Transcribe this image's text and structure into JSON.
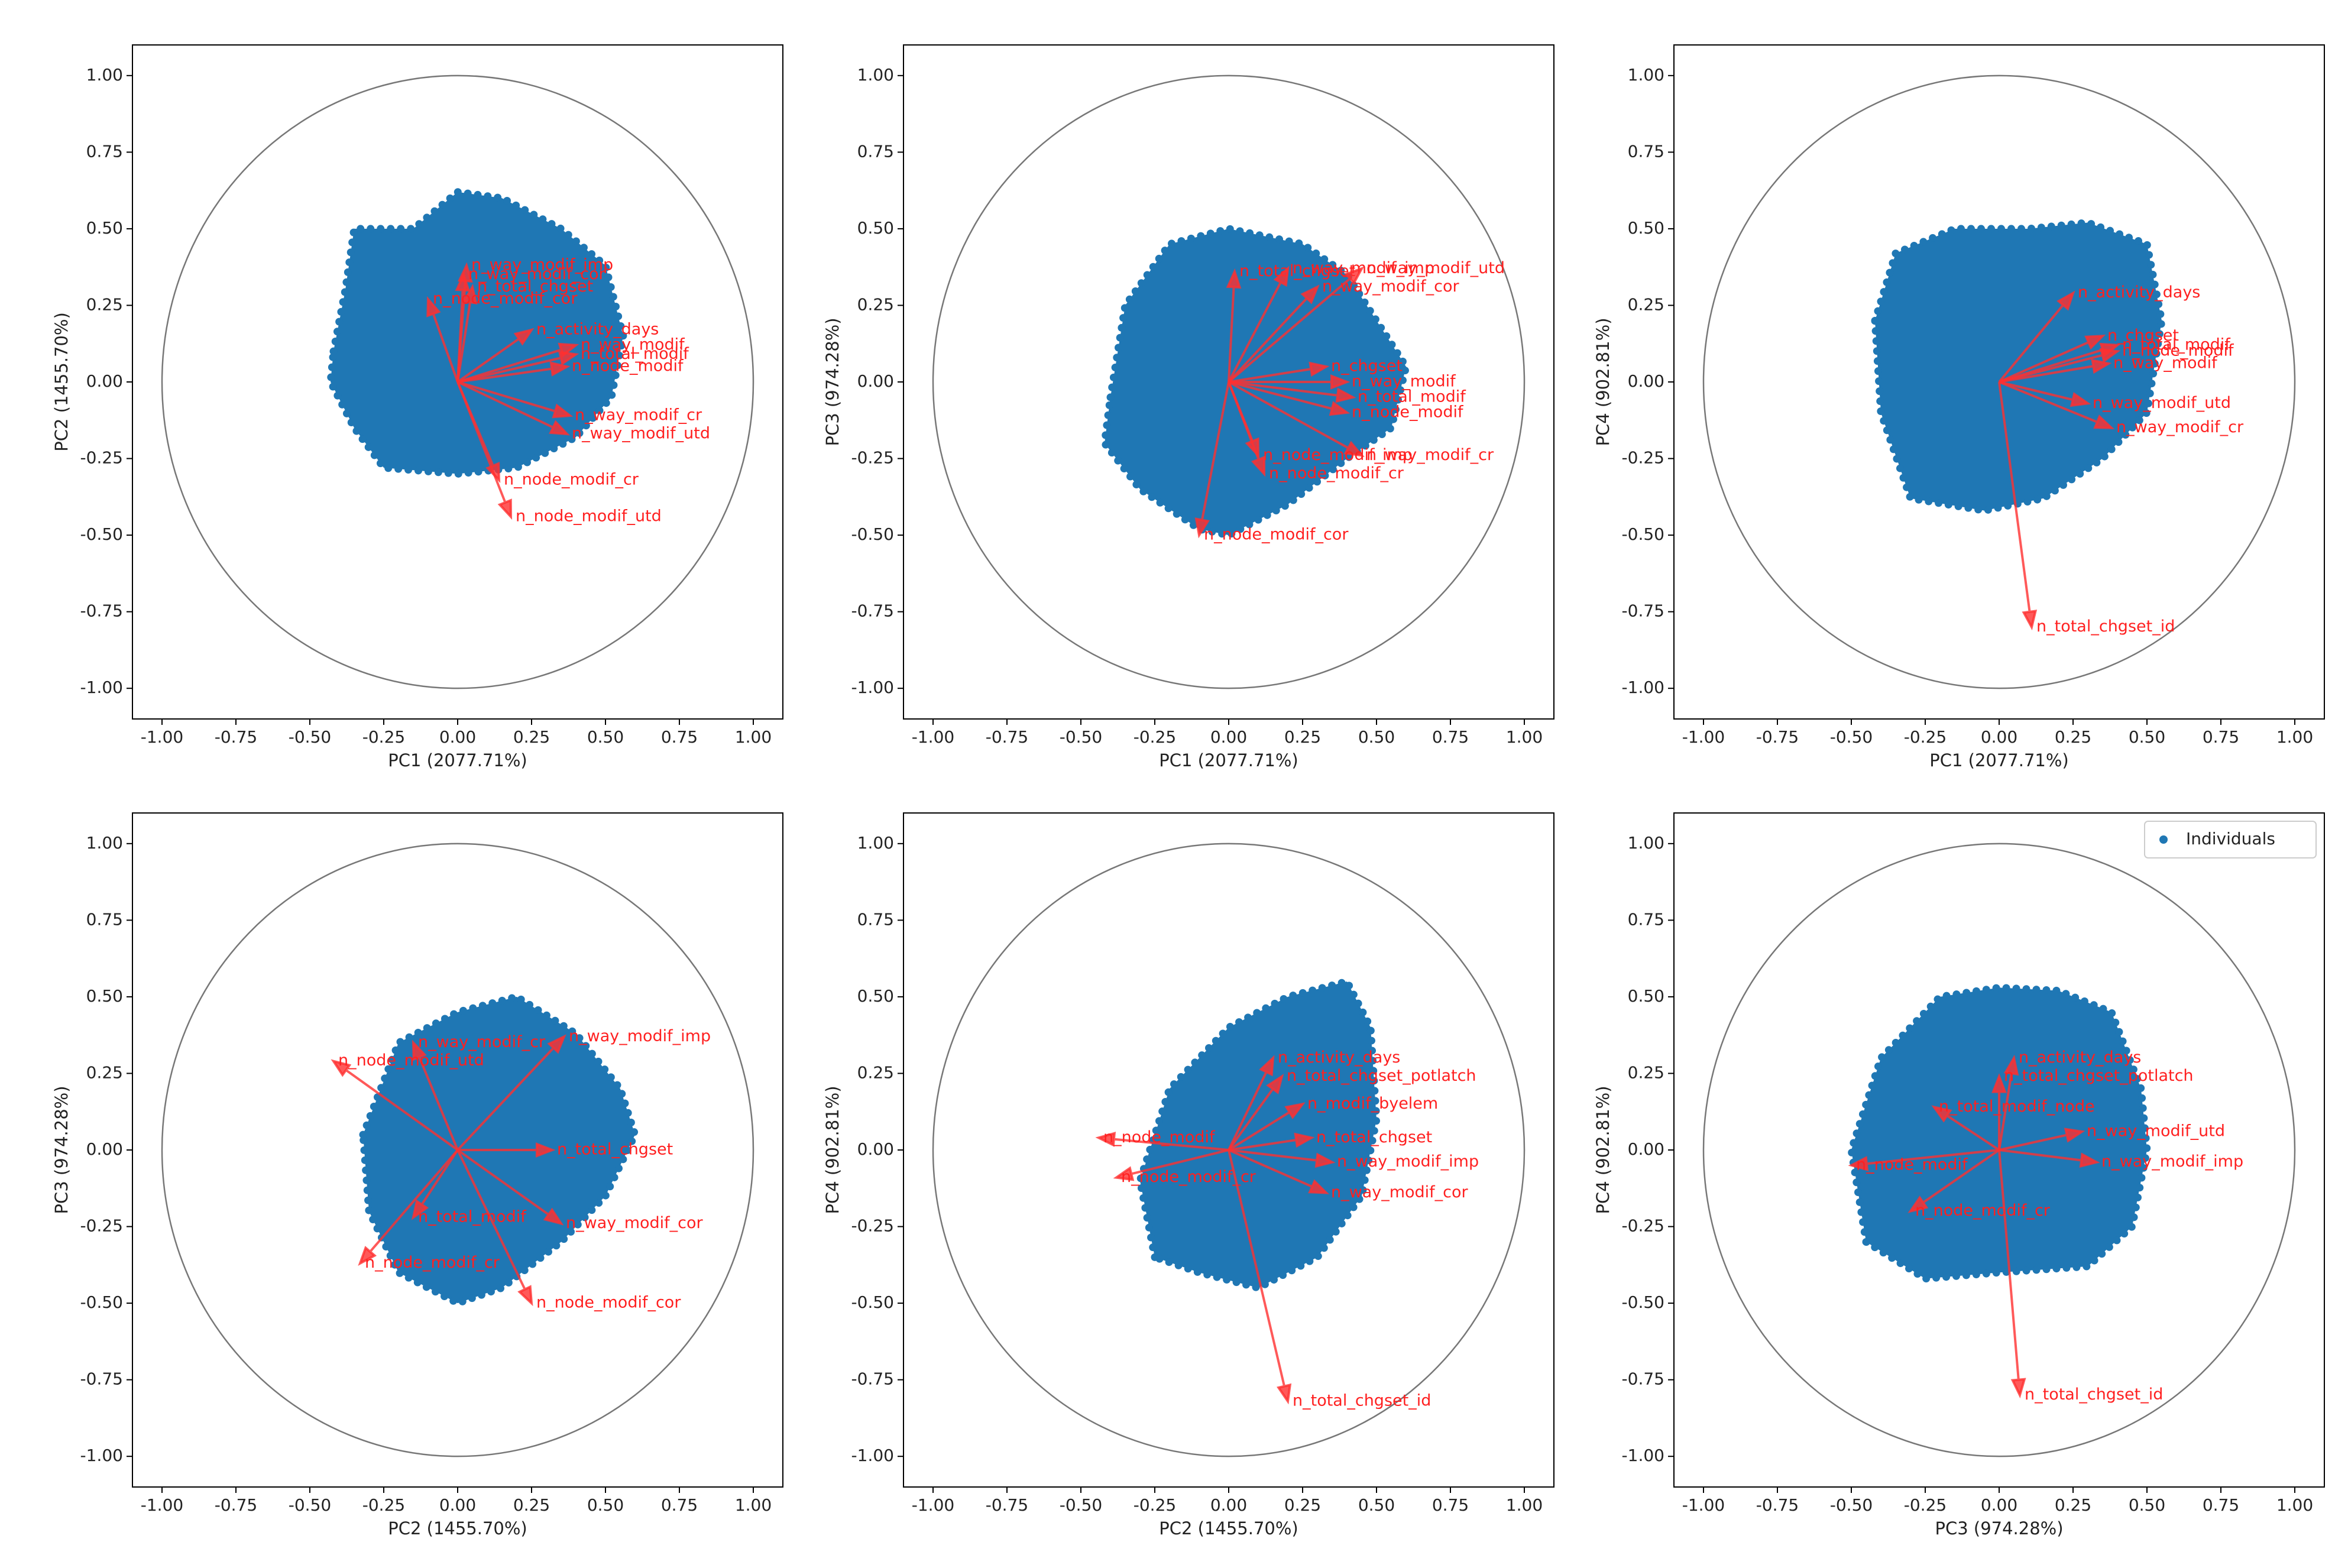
{
  "chart_data": [
    {
      "type": "biplot",
      "xlabel": "PC1 (2077.71%)",
      "ylabel": "PC2 (1455.70%)",
      "xlim": [
        -1.1,
        1.1
      ],
      "ylim": [
        -1.1,
        1.1
      ],
      "xticks": [
        {
          "value": -1,
          "label": "-1.00"
        },
        {
          "value": -0.75,
          "label": "-0.75"
        },
        {
          "value": -0.5,
          "label": "-0.50"
        },
        {
          "value": -0.25,
          "label": "-0.25"
        },
        {
          "value": 0,
          "label": "0.00"
        },
        {
          "value": 0.25,
          "label": "0.25"
        },
        {
          "value": 0.5,
          "label": "0.50"
        },
        {
          "value": 0.75,
          "label": "0.75"
        },
        {
          "value": 1,
          "label": "1.00"
        }
      ],
      "yticks": [
        {
          "value": -1,
          "label": "-1.00"
        },
        {
          "value": -0.75,
          "label": "-0.75"
        },
        {
          "value": -0.5,
          "label": "-0.50"
        },
        {
          "value": -0.25,
          "label": "-0.25"
        },
        {
          "value": 0,
          "label": "0.00"
        },
        {
          "value": 0.25,
          "label": "0.25"
        },
        {
          "value": 0.5,
          "label": "0.50"
        },
        {
          "value": 0.75,
          "label": "0.75"
        },
        {
          "value": 1,
          "label": "1.00"
        }
      ],
      "cloud": {
        "color": "#1f77b4",
        "x": [
          -0.42,
          -0.38,
          -0.35,
          -0.15,
          0.0,
          0.15,
          0.35,
          0.5,
          0.56,
          0.52,
          0.4,
          0.2,
          0.0,
          -0.25,
          -0.35,
          -0.43
        ],
        "y": [
          0.1,
          0.3,
          0.5,
          0.5,
          0.62,
          0.6,
          0.5,
          0.38,
          0.15,
          -0.05,
          -0.18,
          -0.28,
          -0.3,
          -0.28,
          -0.15,
          0.0
        ]
      },
      "loadings": {
        "color": "#ff3030",
        "labels": [
          "n_way_modif_imp",
          "n_way_modif_cor",
          "n_total_chgset",
          "n_node_modif_cor",
          "n_activity_days",
          "n_way_modif",
          "n_total_modif",
          "n_node_modif",
          "n_way_modif_cr",
          "n_way_modif_utd",
          "n_node_modif_cr",
          "n_node_modif_utd"
        ],
        "x": [
          0.03,
          0.02,
          0.05,
          -0.1,
          0.25,
          0.4,
          0.4,
          0.37,
          0.38,
          0.37,
          0.14,
          0.18
        ],
        "y": [
          0.38,
          0.35,
          0.31,
          0.27,
          0.17,
          0.12,
          0.09,
          0.05,
          -0.11,
          -0.17,
          -0.32,
          -0.44
        ]
      }
    },
    {
      "type": "biplot",
      "xlabel": "PC1 (2077.71%)",
      "ylabel": "PC3 (974.28%)",
      "xlim": [
        -1.1,
        1.1
      ],
      "ylim": [
        -1.1,
        1.1
      ],
      "xticks": [
        {
          "value": -1,
          "label": "-1.00"
        },
        {
          "value": -0.75,
          "label": "-0.75"
        },
        {
          "value": -0.5,
          "label": "-0.50"
        },
        {
          "value": -0.25,
          "label": "-0.25"
        },
        {
          "value": 0,
          "label": "0.00"
        },
        {
          "value": 0.25,
          "label": "0.25"
        },
        {
          "value": 0.5,
          "label": "0.50"
        },
        {
          "value": 0.75,
          "label": "0.75"
        },
        {
          "value": 1,
          "label": "1.00"
        }
      ],
      "yticks": [
        {
          "value": -1,
          "label": "-1.00"
        },
        {
          "value": -0.75,
          "label": "-0.75"
        },
        {
          "value": -0.5,
          "label": "-0.50"
        },
        {
          "value": -0.25,
          "label": "-0.25"
        },
        {
          "value": 0,
          "label": "0.00"
        },
        {
          "value": 0.25,
          "label": "0.25"
        },
        {
          "value": 0.5,
          "label": "0.50"
        },
        {
          "value": 0.75,
          "label": "0.75"
        },
        {
          "value": 1,
          "label": "1.00"
        }
      ],
      "cloud": {
        "color": "#1f77b4",
        "x": [
          -0.4,
          -0.35,
          -0.2,
          0.0,
          0.25,
          0.4,
          0.5,
          0.6,
          0.55,
          0.4,
          0.2,
          0.0,
          -0.1,
          -0.3,
          -0.42
        ],
        "y": [
          -0.05,
          0.25,
          0.45,
          0.5,
          0.45,
          0.35,
          0.2,
          0.05,
          -0.15,
          -0.25,
          -0.4,
          -0.5,
          -0.48,
          -0.35,
          -0.2
        ]
      },
      "loadings": {
        "color": "#ff3030",
        "labels": [
          "n_total_chgset",
          "n_way_modif_imp",
          "n_way_modif_utd",
          "n_way_modif_cor",
          "n_chgset",
          "n_way_modif",
          "n_total_modif",
          "n_node_modif",
          "n_way_modif_cr",
          "n_node_modif_imp",
          "n_node_modif_cr",
          "n_node_modif_cor"
        ],
        "x": [
          0.02,
          0.2,
          0.45,
          0.3,
          0.33,
          0.4,
          0.42,
          0.4,
          0.45,
          0.1,
          0.12,
          -0.1
        ],
        "y": [
          0.36,
          0.37,
          0.37,
          0.31,
          0.05,
          0.0,
          -0.05,
          -0.1,
          -0.24,
          -0.24,
          -0.3,
          -0.5
        ]
      }
    },
    {
      "type": "biplot",
      "xlabel": "PC1 (2077.71%)",
      "ylabel": "PC4 (902.81%)",
      "xlim": [
        -1.1,
        1.1
      ],
      "ylim": [
        -1.1,
        1.1
      ],
      "xticks": [
        {
          "value": -1,
          "label": "-1.00"
        },
        {
          "value": -0.75,
          "label": "-0.75"
        },
        {
          "value": -0.5,
          "label": "-0.50"
        },
        {
          "value": -0.25,
          "label": "-0.25"
        },
        {
          "value": 0,
          "label": "0.00"
        },
        {
          "value": 0.25,
          "label": "0.25"
        },
        {
          "value": 0.5,
          "label": "0.50"
        },
        {
          "value": 0.75,
          "label": "0.75"
        },
        {
          "value": 1,
          "label": "1.00"
        }
      ],
      "yticks": [
        {
          "value": -1,
          "label": "-1.00"
        },
        {
          "value": -0.75,
          "label": "-0.75"
        },
        {
          "value": -0.5,
          "label": "-0.50"
        },
        {
          "value": -0.25,
          "label": "-0.25"
        },
        {
          "value": 0,
          "label": "0.00"
        },
        {
          "value": 0.25,
          "label": "0.25"
        },
        {
          "value": 0.5,
          "label": "0.50"
        },
        {
          "value": 0.75,
          "label": "0.75"
        },
        {
          "value": 1,
          "label": "1.00"
        }
      ],
      "cloud": {
        "color": "#1f77b4",
        "x": [
          -0.42,
          -0.35,
          -0.15,
          0.1,
          0.3,
          0.5,
          0.55,
          0.5,
          0.35,
          0.15,
          -0.05,
          -0.3,
          -0.4
        ],
        "y": [
          0.2,
          0.42,
          0.5,
          0.5,
          0.52,
          0.45,
          0.2,
          -0.1,
          -0.25,
          -0.38,
          -0.42,
          -0.38,
          -0.1
        ]
      },
      "loadings": {
        "color": "#ff3030",
        "labels": [
          "n_activity_days",
          "n_chgset",
          "n_total_modif",
          "n_node_modif",
          "n_way_modif",
          "n_way_modif_utd",
          "n_way_modif_cr",
          "n_total_chgset_id"
        ],
        "x": [
          0.25,
          0.35,
          0.4,
          0.4,
          0.37,
          0.3,
          0.38,
          0.11
        ],
        "y": [
          0.29,
          0.15,
          0.12,
          0.1,
          0.06,
          -0.07,
          -0.15,
          -0.8
        ]
      }
    },
    {
      "type": "biplot",
      "xlabel": "PC2 (1455.70%)",
      "ylabel": "PC3 (974.28%)",
      "xlim": [
        -1.1,
        1.1
      ],
      "ylim": [
        -1.1,
        1.1
      ],
      "xticks": [
        {
          "value": -1,
          "label": "-1.00"
        },
        {
          "value": -0.75,
          "label": "-0.75"
        },
        {
          "value": -0.5,
          "label": "-0.50"
        },
        {
          "value": -0.25,
          "label": "-0.25"
        },
        {
          "value": 0,
          "label": "0.00"
        },
        {
          "value": 0.25,
          "label": "0.25"
        },
        {
          "value": 0.5,
          "label": "0.50"
        },
        {
          "value": 0.75,
          "label": "0.75"
        },
        {
          "value": 1,
          "label": "1.00"
        }
      ],
      "yticks": [
        {
          "value": -1,
          "label": "-1.00"
        },
        {
          "value": -0.75,
          "label": "-0.75"
        },
        {
          "value": -0.5,
          "label": "-0.50"
        },
        {
          "value": -0.25,
          "label": "-0.25"
        },
        {
          "value": 0,
          "label": "0.00"
        },
        {
          "value": 0.25,
          "label": "0.25"
        },
        {
          "value": 0.5,
          "label": "0.50"
        },
        {
          "value": 0.75,
          "label": "0.75"
        },
        {
          "value": 1,
          "label": "1.00"
        }
      ],
      "cloud": {
        "color": "#1f77b4",
        "x": [
          -0.32,
          -0.2,
          0.0,
          0.2,
          0.4,
          0.55,
          0.6,
          0.5,
          0.35,
          0.15,
          0.0,
          -0.2,
          -0.3
        ],
        "y": [
          0.05,
          0.35,
          0.45,
          0.5,
          0.38,
          0.2,
          0.05,
          -0.15,
          -0.3,
          -0.45,
          -0.5,
          -0.4,
          -0.2
        ]
      },
      "loadings": {
        "color": "#ff3030",
        "labels": [
          "n_way_modif_imp",
          "n_way_modif_cr",
          "n_node_modif_utd",
          "n_total_chgset",
          "n_way_modif_cor",
          "n_node_modif_cor",
          "n_node_modif_cr",
          "n_total_modif"
        ],
        "x": [
          0.36,
          -0.15,
          -0.42,
          0.32,
          0.35,
          0.25,
          -0.33,
          -0.15
        ],
        "y": [
          0.37,
          0.35,
          0.29,
          0.0,
          -0.24,
          -0.5,
          -0.37,
          -0.22
        ]
      }
    },
    {
      "type": "biplot",
      "xlabel": "PC2 (1455.70%)",
      "ylabel": "PC4 (902.81%)",
      "xlim": [
        -1.1,
        1.1
      ],
      "ylim": [
        -1.1,
        1.1
      ],
      "xticks": [
        {
          "value": -1,
          "label": "-1.00"
        },
        {
          "value": -0.75,
          "label": "-0.75"
        },
        {
          "value": -0.5,
          "label": "-0.50"
        },
        {
          "value": -0.25,
          "label": "-0.25"
        },
        {
          "value": 0,
          "label": "0.00"
        },
        {
          "value": 0.25,
          "label": "0.25"
        },
        {
          "value": 0.5,
          "label": "0.50"
        },
        {
          "value": 0.75,
          "label": "0.75"
        },
        {
          "value": 1,
          "label": "1.00"
        }
      ],
      "yticks": [
        {
          "value": -1,
          "label": "-1.00"
        },
        {
          "value": -0.75,
          "label": "-0.75"
        },
        {
          "value": -0.5,
          "label": "-0.50"
        },
        {
          "value": -0.25,
          "label": "-0.25"
        },
        {
          "value": 0,
          "label": "0.00"
        },
        {
          "value": 0.25,
          "label": "0.25"
        },
        {
          "value": 0.5,
          "label": "0.50"
        },
        {
          "value": 0.75,
          "label": "0.75"
        },
        {
          "value": 1,
          "label": "1.00"
        }
      ],
      "cloud": {
        "color": "#1f77b4",
        "x": [
          -0.25,
          -0.3,
          -0.2,
          0.0,
          0.2,
          0.4,
          0.48,
          0.5,
          0.45,
          0.3,
          0.1,
          -0.1
        ],
        "y": [
          -0.35,
          -0.1,
          0.2,
          0.4,
          0.5,
          0.55,
          0.4,
          0.1,
          -0.15,
          -0.35,
          -0.45,
          -0.4
        ]
      },
      "loadings": {
        "color": "#ff3030",
        "labels": [
          "n_activity_days",
          "n_total_chgset_potlatch",
          "n_modif_byelem",
          "n_total_chgset",
          "n_way_modif_imp",
          "n_way_modif_cor",
          "n_node_modif",
          "n_node_modif_cr",
          "n_total_chgset_id"
        ],
        "x": [
          0.15,
          0.18,
          0.25,
          0.28,
          0.35,
          0.33,
          -0.44,
          -0.38,
          0.2
        ],
        "y": [
          0.3,
          0.24,
          0.15,
          0.04,
          -0.04,
          -0.14,
          0.04,
          -0.09,
          -0.82
        ]
      }
    },
    {
      "type": "biplot",
      "xlabel": "PC3 (974.28%)",
      "ylabel": "PC4 (902.81%)",
      "xlim": [
        -1.1,
        1.1
      ],
      "ylim": [
        -1.1,
        1.1
      ],
      "legend": "upper right",
      "xticks": [
        {
          "value": -1,
          "label": "-1.00"
        },
        {
          "value": -0.75,
          "label": "-0.75"
        },
        {
          "value": -0.5,
          "label": "-0.50"
        },
        {
          "value": -0.25,
          "label": "-0.25"
        },
        {
          "value": 0,
          "label": "0.00"
        },
        {
          "value": 0.25,
          "label": "0.25"
        },
        {
          "value": 0.5,
          "label": "0.50"
        },
        {
          "value": 0.75,
          "label": "0.75"
        },
        {
          "value": 1,
          "label": "1.00"
        }
      ],
      "yticks": [
        {
          "value": -1,
          "label": "-1.00"
        },
        {
          "value": -0.75,
          "label": "-0.75"
        },
        {
          "value": -0.5,
          "label": "-0.50"
        },
        {
          "value": -0.25,
          "label": "-0.25"
        },
        {
          "value": 0,
          "label": "0.00"
        },
        {
          "value": 0.25,
          "label": "0.25"
        },
        {
          "value": 0.5,
          "label": "0.50"
        },
        {
          "value": 0.75,
          "label": "0.75"
        },
        {
          "value": 1,
          "label": "1.00"
        }
      ],
      "cloud": {
        "name": "Individuals",
        "color": "#1f77b4",
        "x": [
          -0.45,
          -0.5,
          -0.4,
          -0.2,
          0.0,
          0.2,
          0.38,
          0.48,
          0.5,
          0.45,
          0.3,
          0.0,
          -0.25
        ],
        "y": [
          -0.3,
          0.0,
          0.3,
          0.5,
          0.53,
          0.52,
          0.45,
          0.2,
          0.0,
          -0.25,
          -0.38,
          -0.4,
          -0.42
        ]
      },
      "loadings": {
        "color": "#ff3030",
        "labels": [
          "n_activity_days",
          "n_total_chgset_potlatch",
          "n_total_modif_node",
          "n_way_modif_utd",
          "n_way_modif_imp",
          "n_node_modif",
          "n_node_modif_cr",
          "n_total_chgset_id"
        ],
        "x": [
          0.05,
          0.0,
          -0.22,
          0.28,
          0.33,
          -0.5,
          -0.3,
          0.07
        ],
        "y": [
          0.3,
          0.24,
          0.14,
          0.06,
          -0.04,
          -0.05,
          -0.2,
          -0.8
        ]
      }
    }
  ]
}
